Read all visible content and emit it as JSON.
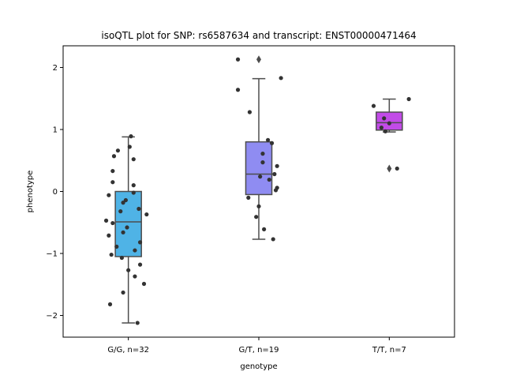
{
  "chart_data": {
    "type": "box",
    "title": "isoQTL plot for SNP: rs6587634 and transcript: ENST00000471464",
    "xlabel": "genotype",
    "ylabel": "phenotype",
    "ylim": [
      -2.35,
      2.35
    ],
    "yticks": [
      -2,
      -1,
      0,
      1,
      2
    ],
    "ytick_labels": [
      "−2",
      "−1",
      "0",
      "1",
      "2"
    ],
    "grid": false,
    "categories": [
      "G/G, n=32",
      "G/T, n=19",
      "T/T, n=7"
    ],
    "boxes": [
      {
        "category": "G/G, n=32",
        "color": "#4fb3e6",
        "q1": -1.05,
        "median": -0.49,
        "q3": 0.0,
        "whisker_low": -2.12,
        "whisker_high": 0.88,
        "outliers": []
      },
      {
        "category": "G/T, n=19",
        "color": "#8f8cf2",
        "q1": -0.05,
        "median": 0.28,
        "q3": 0.8,
        "whisker_low": -0.77,
        "whisker_high": 1.82,
        "outliers": [
          2.13
        ]
      },
      {
        "category": "T/T, n=7",
        "color": "#c24be8",
        "q1": 0.99,
        "median": 1.11,
        "q3": 1.28,
        "whisker_low": 0.96,
        "whisker_high": 1.49,
        "outliers": [
          0.37
        ]
      }
    ],
    "points": [
      {
        "category": "G/G, n=32",
        "jitter": 0.02,
        "y": 0.89
      },
      {
        "category": "G/G, n=32",
        "jitter": 0.01,
        "y": 0.72
      },
      {
        "category": "G/G, n=32",
        "jitter": -0.08,
        "y": 0.66
      },
      {
        "category": "G/G, n=32",
        "jitter": -0.11,
        "y": 0.57
      },
      {
        "category": "G/G, n=32",
        "jitter": 0.04,
        "y": 0.52
      },
      {
        "category": "G/G, n=32",
        "jitter": -0.12,
        "y": 0.33
      },
      {
        "category": "G/G, n=32",
        "jitter": -0.12,
        "y": 0.15
      },
      {
        "category": "G/G, n=32",
        "jitter": 0.04,
        "y": 0.1
      },
      {
        "category": "G/G, n=32",
        "jitter": 0.04,
        "y": -0.02
      },
      {
        "category": "G/G, n=32",
        "jitter": -0.15,
        "y": -0.06
      },
      {
        "category": "G/G, n=32",
        "jitter": -0.02,
        "y": -0.14
      },
      {
        "category": "G/G, n=32",
        "jitter": -0.04,
        "y": -0.18
      },
      {
        "category": "G/G, n=32",
        "jitter": 0.08,
        "y": -0.28
      },
      {
        "category": "G/G, n=32",
        "jitter": -0.06,
        "y": -0.32
      },
      {
        "category": "G/G, n=32",
        "jitter": 0.14,
        "y": -0.37
      },
      {
        "category": "G/G, n=32",
        "jitter": -0.17,
        "y": -0.47
      },
      {
        "category": "G/G, n=32",
        "jitter": -0.12,
        "y": -0.51
      },
      {
        "category": "G/G, n=32",
        "jitter": -0.01,
        "y": -0.58
      },
      {
        "category": "G/G, n=32",
        "jitter": -0.04,
        "y": -0.66
      },
      {
        "category": "G/G, n=32",
        "jitter": -0.15,
        "y": -0.71
      },
      {
        "category": "G/G, n=32",
        "jitter": 0.09,
        "y": -0.82
      },
      {
        "category": "G/G, n=32",
        "jitter": -0.09,
        "y": -0.89
      },
      {
        "category": "G/G, n=32",
        "jitter": 0.05,
        "y": -0.95
      },
      {
        "category": "G/G, n=32",
        "jitter": -0.13,
        "y": -1.02
      },
      {
        "category": "G/G, n=32",
        "jitter": -0.05,
        "y": -1.07
      },
      {
        "category": "G/G, n=32",
        "jitter": 0.09,
        "y": -1.18
      },
      {
        "category": "G/G, n=32",
        "jitter": 0.0,
        "y": -1.27
      },
      {
        "category": "G/G, n=32",
        "jitter": 0.05,
        "y": -1.37
      },
      {
        "category": "G/G, n=32",
        "jitter": 0.12,
        "y": -1.49
      },
      {
        "category": "G/G, n=32",
        "jitter": -0.04,
        "y": -1.63
      },
      {
        "category": "G/G, n=32",
        "jitter": -0.14,
        "y": -1.82
      },
      {
        "category": "G/G, n=32",
        "jitter": 0.07,
        "y": -2.12
      },
      {
        "category": "G/T, n=19",
        "jitter": -0.16,
        "y": 2.13
      },
      {
        "category": "G/T, n=19",
        "jitter": 0.17,
        "y": 1.83
      },
      {
        "category": "G/T, n=19",
        "jitter": -0.16,
        "y": 1.64
      },
      {
        "category": "G/T, n=19",
        "jitter": -0.07,
        "y": 1.28
      },
      {
        "category": "G/T, n=19",
        "jitter": 0.07,
        "y": 0.83
      },
      {
        "category": "G/T, n=19",
        "jitter": 0.1,
        "y": 0.78
      },
      {
        "category": "G/T, n=19",
        "jitter": 0.03,
        "y": 0.61
      },
      {
        "category": "G/T, n=19",
        "jitter": 0.03,
        "y": 0.47
      },
      {
        "category": "G/T, n=19",
        "jitter": 0.14,
        "y": 0.41
      },
      {
        "category": "G/T, n=19",
        "jitter": 0.12,
        "y": 0.28
      },
      {
        "category": "G/T, n=19",
        "jitter": 0.01,
        "y": 0.24
      },
      {
        "category": "G/T, n=19",
        "jitter": 0.08,
        "y": 0.19
      },
      {
        "category": "G/T, n=19",
        "jitter": 0.14,
        "y": 0.06
      },
      {
        "category": "G/T, n=19",
        "jitter": 0.13,
        "y": 0.02
      },
      {
        "category": "G/T, n=19",
        "jitter": -0.08,
        "y": -0.1
      },
      {
        "category": "G/T, n=19",
        "jitter": 0.0,
        "y": -0.24
      },
      {
        "category": "G/T, n=19",
        "jitter": -0.02,
        "y": -0.41
      },
      {
        "category": "G/T, n=19",
        "jitter": 0.04,
        "y": -0.61
      },
      {
        "category": "G/T, n=19",
        "jitter": 0.11,
        "y": -0.77
      },
      {
        "category": "T/T, n=7",
        "jitter": 0.15,
        "y": 1.49
      },
      {
        "category": "T/T, n=7",
        "jitter": -0.12,
        "y": 1.38
      },
      {
        "category": "T/T, n=7",
        "jitter": -0.04,
        "y": 1.18
      },
      {
        "category": "T/T, n=7",
        "jitter": 0.0,
        "y": 1.1
      },
      {
        "category": "T/T, n=7",
        "jitter": -0.06,
        "y": 1.03
      },
      {
        "category": "T/T, n=7",
        "jitter": -0.03,
        "y": 0.97
      },
      {
        "category": "T/T, n=7",
        "jitter": 0.06,
        "y": 0.37
      }
    ],
    "colors": {
      "whisker": "#4d4d4d",
      "point": "#333333",
      "axis": "#000000"
    }
  }
}
